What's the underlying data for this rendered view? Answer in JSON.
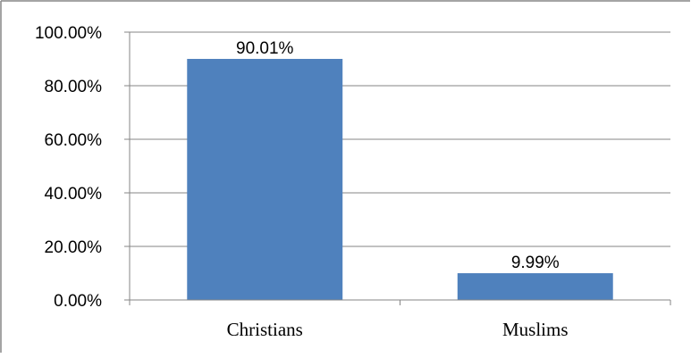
{
  "chart_data": {
    "type": "bar",
    "categories": [
      "Christians",
      "Muslims"
    ],
    "values": [
      90.01,
      9.99
    ],
    "data_labels": [
      "90.01%",
      "9.99%"
    ],
    "y_ticks": [
      0,
      20,
      40,
      60,
      80,
      100
    ],
    "y_tick_labels": [
      "0.00%",
      "20.00%",
      "40.00%",
      "60.00%",
      "80.00%",
      "100.00%"
    ],
    "ylim": [
      0,
      100
    ],
    "grid": true,
    "legend": "none",
    "title": "",
    "xlabel": "",
    "ylabel": "",
    "colors": {
      "bar": "#4f81bd",
      "grid": "#868686",
      "frame": "#868686"
    }
  }
}
